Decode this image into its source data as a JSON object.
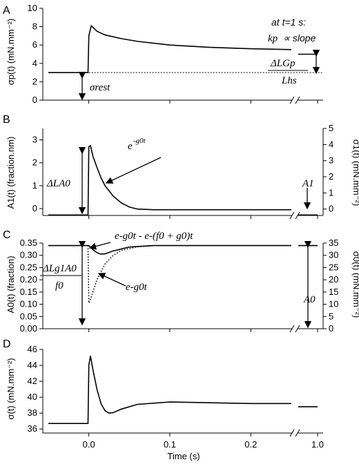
{
  "chart_data": [
    {
      "panel": "A",
      "type": "line",
      "ylabel": "σp(t) (mN.mm⁻²)",
      "ylim": [
        0,
        10
      ],
      "yticks": [
        0,
        2,
        4,
        6,
        8,
        10
      ],
      "series": [
        {
          "x": [
            -0.05,
            -0.001,
            0.0,
            0.003,
            0.01,
            0.02,
            0.04,
            0.06,
            0.1,
            0.15,
            0.2,
            0.25
          ],
          "y": [
            3.0,
            3.0,
            7.0,
            8.1,
            7.5,
            7.1,
            6.7,
            6.4,
            6.0,
            5.75,
            5.6,
            5.5
          ]
        },
        {
          "x": [
            0.95,
            1.0
          ],
          "y": [
            5.0,
            5.0
          ]
        }
      ],
      "reference_line": {
        "y": 3.0,
        "style": "dotted"
      },
      "annotations": {
        "rest": "σrest",
        "note_line1": "at t=1 s:",
        "note_kp": "kp",
        "note_rest": "∝ slope",
        "frac_num": "ΔLGp",
        "frac_den": "Lhs"
      }
    },
    {
      "panel": "B",
      "type": "line",
      "ylabel_left": "A1(t) (fraction.nm)",
      "ylabel_right": "σ1(t) (mN.mm⁻²)",
      "ylim_left": [
        -0.3,
        3.5
      ],
      "ylim_right": [
        -0.4,
        5
      ],
      "yticks_left": [
        0,
        1,
        2,
        3
      ],
      "yticks_right": [
        0,
        1,
        2,
        3,
        4,
        5
      ],
      "series": [
        {
          "x": [
            -0.05,
            -0.001,
            0.0,
            0.002,
            0.005,
            0.01,
            0.015,
            0.02,
            0.03,
            0.04,
            0.05,
            0.06,
            0.08,
            0.1,
            0.25
          ],
          "y": [
            -0.28,
            -0.28,
            2.7,
            2.75,
            2.3,
            1.8,
            1.35,
            1.0,
            0.55,
            0.25,
            0.07,
            -0.02,
            -0.05,
            -0.05,
            -0.05
          ]
        },
        {
          "x": [
            0.95,
            1.0
          ],
          "y": [
            -0.28,
            -0.28
          ]
        }
      ],
      "annotations": {
        "amp": "ΔLA0",
        "exp_base": "e",
        "exp_sup": "-g0t",
        "end_label": "A1"
      }
    },
    {
      "panel": "C",
      "type": "line",
      "ylabel_left": "A0(t) (fraction)",
      "ylabel_right": "σ0(t) (mN.mm⁻²)",
      "ylim_left": [
        0,
        0.35
      ],
      "ylim_right": [
        0,
        35
      ],
      "yticks_left": [
        0.0,
        0.05,
        0.1,
        0.15,
        0.2,
        0.25,
        0.3,
        0.35
      ],
      "yticks_right": [
        0,
        5,
        10,
        15,
        20,
        25,
        30,
        35
      ],
      "series": [
        {
          "name": "solid",
          "x": [
            -0.05,
            -0.001,
            0.0,
            0.005,
            0.01,
            0.015,
            0.02,
            0.03,
            0.05,
            0.08,
            0.25
          ],
          "y": [
            0.34,
            0.34,
            0.34,
            0.323,
            0.311,
            0.305,
            0.306,
            0.318,
            0.334,
            0.34,
            0.34
          ]
        },
        {
          "name": "dotted",
          "x": [
            -0.001,
            0.0,
            0.003,
            0.01,
            0.02,
            0.03,
            0.04,
            0.06,
            0.08
          ],
          "y": [
            0.34,
            0.105,
            0.13,
            0.2,
            0.265,
            0.3,
            0.32,
            0.335,
            0.34
          ]
        },
        {
          "x": [
            0.95,
            1.0
          ],
          "y": [
            0.34,
            0.34
          ]
        }
      ],
      "annotations": {
        "frac_num": "ΔLg1A0",
        "frac_den": "f0",
        "diff_label": "e-g0t - e-(f0 + g0)t",
        "exp_label": "e-g0t",
        "end_label": "A0"
      }
    },
    {
      "panel": "D",
      "type": "line",
      "ylabel": "σ(t) (mN.mm⁻²)",
      "xlabel": "Time (s)",
      "ylim": [
        35.5,
        46
      ],
      "yticks": [
        36,
        38,
        40,
        42,
        44,
        46
      ],
      "xticks": [
        "0.0",
        "0.1",
        "0.2",
        "1.0"
      ],
      "series": [
        {
          "x": [
            -0.05,
            -0.001,
            0.0,
            0.002,
            0.005,
            0.01,
            0.015,
            0.02,
            0.025,
            0.03,
            0.04,
            0.06,
            0.1,
            0.15,
            0.2,
            0.25
          ],
          "y": [
            36.7,
            36.7,
            44.0,
            45.2,
            43.5,
            41.0,
            39.2,
            38.3,
            38.0,
            38.05,
            38.5,
            39.1,
            39.4,
            39.3,
            39.2,
            39.2
          ]
        },
        {
          "x": [
            0.95,
            1.0
          ],
          "y": [
            38.8,
            38.8
          ]
        }
      ]
    }
  ],
  "panel_letters": [
    "A",
    "B",
    "C",
    "D"
  ]
}
